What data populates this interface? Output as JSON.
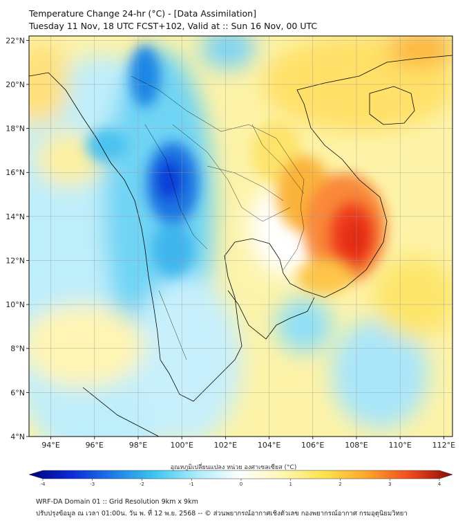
{
  "title": {
    "line1": "Temperature Change 24-hr (°C) - [Data Assimilation]",
    "line2": "Tuesday 11 Nov, 18 UTC FCST+102, Valid at :: Sun 16 Nov, 00 UTC"
  },
  "map": {
    "lat_ticks": [
      {
        "value": 22,
        "label": "22°N"
      },
      {
        "value": 20,
        "label": "20°N"
      },
      {
        "value": 18,
        "label": "18°N"
      },
      {
        "value": 16,
        "label": "16°N"
      },
      {
        "value": 14,
        "label": "14°N"
      },
      {
        "value": 12,
        "label": "12°N"
      },
      {
        "value": 10,
        "label": "10°N"
      },
      {
        "value": 8,
        "label": "8°N"
      },
      {
        "value": 6,
        "label": "6°N"
      },
      {
        "value": 4,
        "label": "4°N"
      }
    ],
    "lon_ticks": [
      {
        "value": 94,
        "label": "94°E"
      },
      {
        "value": 96,
        "label": "96°E"
      },
      {
        "value": 98,
        "label": "98°E"
      },
      {
        "value": 100,
        "label": "100°E"
      },
      {
        "value": 102,
        "label": "102°E"
      },
      {
        "value": 104,
        "label": "104°E"
      },
      {
        "value": 106,
        "label": "106°E"
      },
      {
        "value": 108,
        "label": "108°E"
      },
      {
        "value": 110,
        "label": "110°E"
      },
      {
        "value": 112,
        "label": "112°E"
      }
    ],
    "lon_range": [
      93,
      112.4
    ],
    "lat_range": [
      4,
      22.2
    ]
  },
  "colorbar": {
    "label": "อุณหภูมิเปลี่ยนแปลง หน่วย องศาเซลเซียส (°C)",
    "ticks": [
      "-4",
      "-3",
      "-2",
      "-1",
      "0",
      "1",
      "2",
      "3",
      "4"
    ],
    "range": [
      -4,
      4
    ],
    "colors": [
      "#00007a",
      "#0a2ad8",
      "#1e7de8",
      "#40c8f0",
      "#b0ecfb",
      "#ffffff",
      "#fff6b0",
      "#fde24a",
      "#fca42a",
      "#f04a1e",
      "#8a0a0a"
    ]
  },
  "footer": {
    "line1": "WRF-DA Domain 01 :: Grid Resolution 9km x 9km",
    "line2": "ปรับปรุงข้อมูล ณ เวลา 01:00น. วัน พ. ที่ 12 พ.ย. 2568 -- © ส่วนพยากรณ์อากาศเชิงตัวเลข กองพยากรณ์อากาศ กรมอุตุนิยมวิทยา"
  }
}
